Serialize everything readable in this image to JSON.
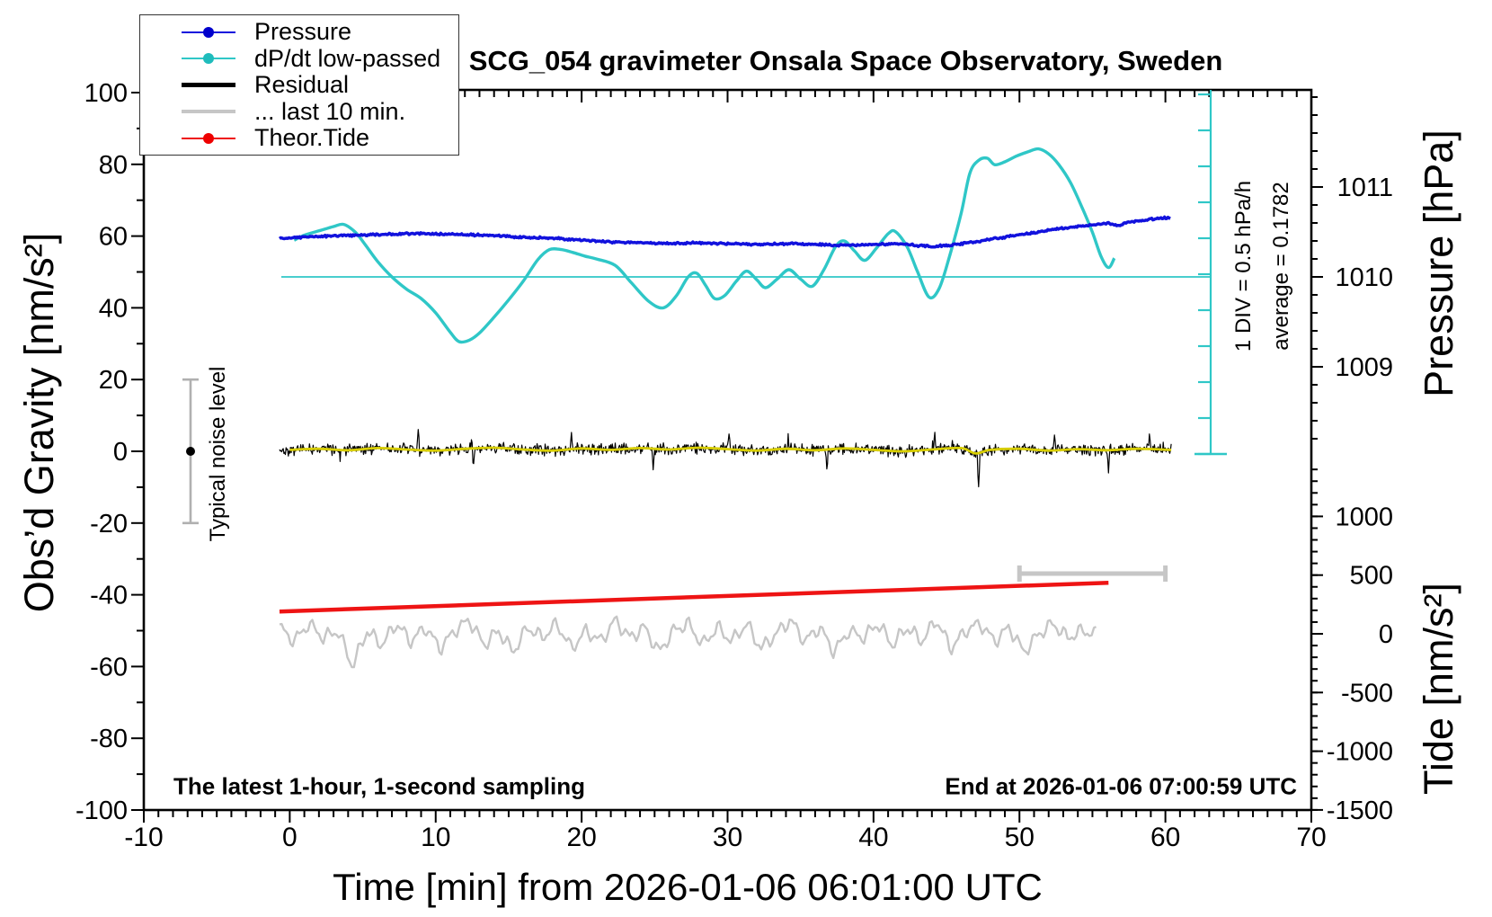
{
  "title": "SCG_054 gravimeter Onsala Space Observatory, Sweden",
  "legend": {
    "items": [
      {
        "label": "Pressure",
        "color": "#1212dd",
        "dot": true,
        "dot_color": "#0000cc",
        "thickness": 2.2
      },
      {
        "label": "dP/dt low-passed",
        "color": "#2fc7c7",
        "dot": true,
        "dot_color": "#1fbcbc",
        "thickness": 2.2
      },
      {
        "label": "Residual",
        "color": "#000000",
        "dot": false,
        "dot_color": "",
        "thickness": 5
      },
      {
        "label": "... last 10 min.",
        "color": "#c6c6c6",
        "dot": false,
        "dot_color": "",
        "thickness": 4
      },
      {
        "label": "Theor.Tide",
        "color": "#ee1414",
        "dot": true,
        "dot_color": "#ee0000",
        "thickness": 2.2
      }
    ]
  },
  "axes": {
    "left": {
      "title": "Obs’d Gravity [nm/s²]",
      "tick_values": [
        100,
        80,
        60,
        40,
        20,
        0,
        -20,
        -40,
        -60,
        -80,
        -100
      ],
      "minor_step": 10,
      "range": [
        -100,
        100
      ]
    },
    "bottom": {
      "title": "Time [min] from 2026-01-06 06:01:00 UTC",
      "tick_values": [
        -10,
        0,
        10,
        20,
        30,
        40,
        50,
        60,
        70
      ],
      "minor_step": 1,
      "range": [
        -10,
        70
      ]
    },
    "pressure": {
      "title": "Pressure [hPa]",
      "tick_values": [
        1011,
        1010,
        1009
      ],
      "minor_step": 0.2
    },
    "tide": {
      "title": "Tide [nm/s²]",
      "tick_values": [
        1000,
        500,
        0,
        -500,
        -1000,
        -1500
      ],
      "minor_step": 100
    }
  },
  "annotations": {
    "noise_bar_label": "Typical noise level",
    "div_scale_label": "1 DIV = 0.5 hPa/h",
    "average_label": "average = 0.1782",
    "footer_left": "The latest 1-hour, 1-second sampling",
    "footer_right": "End at 2026-01-06 07:00:59 UTC"
  },
  "chart_data": {
    "type": "line",
    "title": "SCG_054 gravimeter Onsala Space Observatory, Sweden",
    "xlabel": "Time [min] from 2026-01-06 06:01:00 UTC",
    "x_range": [
      -10,
      70
    ],
    "left_axis": {
      "label": "Obs’d Gravity [nm/s²]",
      "range": [
        -100,
        100
      ]
    },
    "right_axes": [
      {
        "label": "Pressure [hPa]",
        "ticks": [
          1011,
          1010,
          1009
        ]
      },
      {
        "label": "Tide [nm/s²]",
        "ticks": [
          1000,
          500,
          0,
          -500,
          -1000,
          -1500
        ]
      }
    ],
    "dpdt_scale": {
      "div_hpa_per_h": 0.5,
      "average_hpa_per_h": 0.1782,
      "zero_level_pressure_hpa": 1010
    },
    "series": [
      {
        "name": "Pressure",
        "unit": "hPa",
        "color": "#1212dd",
        "points": [
          [
            -0.7,
            1010.43
          ],
          [
            2,
            1010.45
          ],
          [
            4,
            1010.46
          ],
          [
            6,
            1010.47
          ],
          [
            8,
            1010.48
          ],
          [
            10,
            1010.48
          ],
          [
            12,
            1010.47
          ],
          [
            14,
            1010.46
          ],
          [
            16,
            1010.44
          ],
          [
            18,
            1010.43
          ],
          [
            20,
            1010.41
          ],
          [
            22,
            1010.39
          ],
          [
            24,
            1010.38
          ],
          [
            26,
            1010.37
          ],
          [
            28,
            1010.38
          ],
          [
            30,
            1010.37
          ],
          [
            32,
            1010.36
          ],
          [
            34,
            1010.37
          ],
          [
            36,
            1010.36
          ],
          [
            38,
            1010.35
          ],
          [
            40,
            1010.36
          ],
          [
            42,
            1010.37
          ],
          [
            43,
            1010.35
          ],
          [
            44,
            1010.34
          ],
          [
            45,
            1010.35
          ],
          [
            46,
            1010.37
          ],
          [
            47,
            1010.39
          ],
          [
            48,
            1010.42
          ],
          [
            49,
            1010.44
          ],
          [
            50,
            1010.47
          ],
          [
            51,
            1010.49
          ],
          [
            52,
            1010.52
          ],
          [
            53,
            1010.54
          ],
          [
            54,
            1010.56
          ],
          [
            55,
            1010.58
          ],
          [
            56,
            1010.6
          ],
          [
            56.8,
            1010.57
          ],
          [
            57.5,
            1010.61
          ],
          [
            58.5,
            1010.63
          ],
          [
            59.5,
            1010.65
          ],
          [
            60.4,
            1010.66
          ]
        ]
      },
      {
        "name": "dP/dt low-passed",
        "unit": "hPa/h",
        "color": "#2fc7c7",
        "points": [
          [
            0.3,
            0.51
          ],
          [
            1,
            0.58
          ],
          [
            2,
            0.64
          ],
          [
            3,
            0.7
          ],
          [
            3.7,
            0.73
          ],
          [
            4.5,
            0.62
          ],
          [
            5.2,
            0.44
          ],
          [
            6,
            0.22
          ],
          [
            7,
            0.0
          ],
          [
            8,
            -0.17
          ],
          [
            9,
            -0.3
          ],
          [
            10,
            -0.5
          ],
          [
            11,
            -0.77
          ],
          [
            11.6,
            -0.9
          ],
          [
            12.3,
            -0.88
          ],
          [
            13,
            -0.78
          ],
          [
            14,
            -0.56
          ],
          [
            15,
            -0.32
          ],
          [
            16,
            -0.06
          ],
          [
            17,
            0.24
          ],
          [
            17.8,
            0.38
          ],
          [
            18.6,
            0.38
          ],
          [
            19.4,
            0.34
          ],
          [
            20.2,
            0.29
          ],
          [
            21,
            0.25
          ],
          [
            22.3,
            0.16
          ],
          [
            23.4,
            -0.08
          ],
          [
            24.6,
            -0.34
          ],
          [
            25.6,
            -0.43
          ],
          [
            26.5,
            -0.26
          ],
          [
            27.3,
            0.0
          ],
          [
            27.9,
            0.05
          ],
          [
            28.5,
            -0.12
          ],
          [
            29.1,
            -0.3
          ],
          [
            29.8,
            -0.26
          ],
          [
            30.6,
            -0.06
          ],
          [
            31.3,
            0.08
          ],
          [
            32,
            -0.04
          ],
          [
            32.6,
            -0.15
          ],
          [
            33.4,
            -0.03
          ],
          [
            34.2,
            0.1
          ],
          [
            35,
            -0.03
          ],
          [
            35.8,
            -0.13
          ],
          [
            36.6,
            0.1
          ],
          [
            37.4,
            0.42
          ],
          [
            38,
            0.5
          ],
          [
            38.7,
            0.36
          ],
          [
            39.4,
            0.23
          ],
          [
            40.2,
            0.4
          ],
          [
            41,
            0.6
          ],
          [
            41.5,
            0.63
          ],
          [
            42.3,
            0.42
          ],
          [
            43,
            0.08
          ],
          [
            43.8,
            -0.28
          ],
          [
            44.5,
            -0.16
          ],
          [
            45.2,
            0.28
          ],
          [
            46,
            0.88
          ],
          [
            46.6,
            1.44
          ],
          [
            47.2,
            1.62
          ],
          [
            47.8,
            1.65
          ],
          [
            48.3,
            1.56
          ],
          [
            49,
            1.6
          ],
          [
            49.8,
            1.68
          ],
          [
            50.6,
            1.74
          ],
          [
            51.3,
            1.78
          ],
          [
            52,
            1.71
          ],
          [
            52.7,
            1.56
          ],
          [
            53.5,
            1.31
          ],
          [
            54.3,
            0.96
          ],
          [
            55,
            0.62
          ],
          [
            55.6,
            0.28
          ],
          [
            56.1,
            0.13
          ],
          [
            56.5,
            0.26
          ]
        ]
      },
      {
        "name": "Residual",
        "unit": "nm/s²",
        "color": "#000000",
        "overlay_color": "#d8ce00",
        "t_end": 60.4,
        "noise_halfwidth": 2,
        "smooth_points": [
          [
            0,
            0.4
          ],
          [
            2,
            0.7
          ],
          [
            4,
            0.3
          ],
          [
            6,
            0.9
          ],
          [
            8,
            0.5
          ],
          [
            10,
            0.2
          ],
          [
            12,
            0.7
          ],
          [
            14,
            1.0
          ],
          [
            16,
            0.5
          ],
          [
            18,
            0.2
          ],
          [
            20,
            0.8
          ],
          [
            22,
            0.4
          ],
          [
            24,
            0.9
          ],
          [
            26,
            0.5
          ],
          [
            28,
            1.0
          ],
          [
            30,
            0.6
          ],
          [
            32,
            0.2
          ],
          [
            34,
            0.7
          ],
          [
            36,
            0.3
          ],
          [
            38,
            0.8
          ],
          [
            40,
            0.4
          ],
          [
            42,
            0.0
          ],
          [
            44,
            0.5
          ],
          [
            46,
            0.9
          ],
          [
            47,
            -0.6
          ],
          [
            48,
            0.4
          ],
          [
            50,
            0.7
          ],
          [
            52,
            0.2
          ],
          [
            54,
            0.6
          ],
          [
            56,
            0.3
          ],
          [
            58,
            0.7
          ],
          [
            60.4,
            0.4
          ]
        ],
        "spikes": [
          [
            8.8,
            5.2
          ],
          [
            12.6,
            -4.8
          ],
          [
            19.3,
            5.5
          ],
          [
            24.9,
            -4.5
          ],
          [
            30.1,
            5.0
          ],
          [
            36.8,
            -5.2
          ],
          [
            44.2,
            5.0
          ],
          [
            47.2,
            -10
          ],
          [
            52.4,
            4.6
          ],
          [
            56.1,
            -6.5
          ],
          [
            58.9,
            4.4
          ]
        ]
      },
      {
        "name": "... last 10 min.",
        "unit": "nm/s² (offset display)",
        "color": "#c6c6c6",
        "t_start": 0,
        "t_step": 1,
        "values": [
          -49,
          -53,
          -48,
          -52,
          -50,
          -60,
          -50,
          -54,
          -48,
          -53,
          -49,
          -55,
          -50,
          -47,
          -54,
          -50,
          -56,
          -49,
          -52,
          -48,
          -55,
          -50,
          -53,
          -47,
          -52,
          -49,
          -56,
          -50,
          -48,
          -54,
          -49,
          -53,
          -48,
          -55,
          -51,
          -47,
          -53,
          -49,
          -56,
          -50,
          -52,
          -48,
          -54,
          -49,
          -53,
          -47,
          -55,
          -50,
          -48,
          -53,
          -49,
          -56,
          -51,
          -48,
          -52,
          -50,
          -51
        ]
      },
      {
        "name": "Theor.Tide",
        "unit": "nm/s² (tide axis)",
        "color": "#ee1414",
        "points": [
          [
            -0.7,
            190
          ],
          [
            56.1,
            435
          ]
        ]
      }
    ],
    "noise_level_bar": {
      "center_nm_s2": 0,
      "half_range_nm_s2": 20
    },
    "last10_marker_minutes": [
      50,
      60
    ]
  }
}
